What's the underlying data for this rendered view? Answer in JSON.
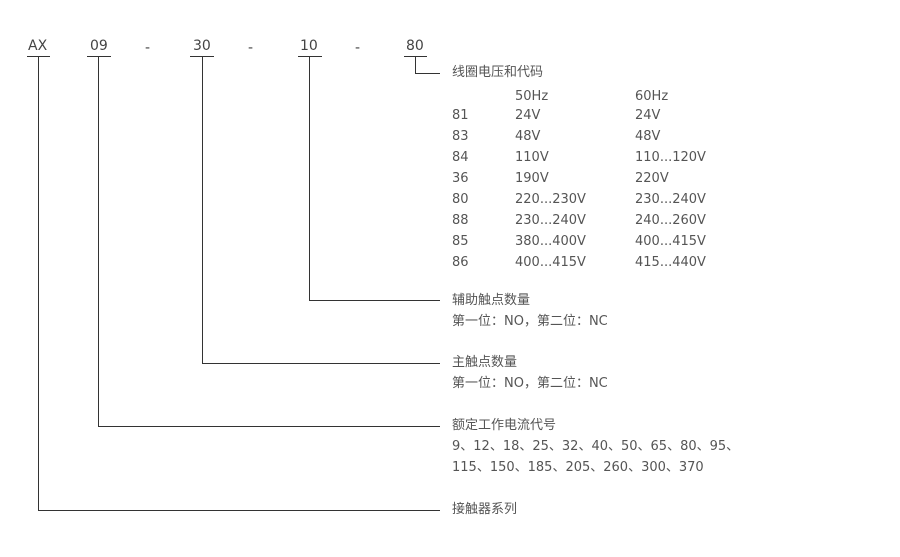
{
  "codes": {
    "series": "AX",
    "current": "09",
    "main": "30",
    "aux": "10",
    "coil": "80",
    "dash": "-"
  },
  "coil": {
    "title": "线圈电压和代码",
    "headers": [
      "50Hz",
      "60Hz"
    ],
    "rows": [
      [
        "81",
        "24V",
        "24V"
      ],
      [
        "83",
        "48V",
        "48V"
      ],
      [
        "84",
        "110V",
        "110...120V"
      ],
      [
        "36",
        "190V",
        "220V"
      ],
      [
        "80",
        "220...230V",
        "230...240V"
      ],
      [
        "88",
        "230...240V",
        "240...260V"
      ],
      [
        "85",
        "380...400V",
        "400...415V"
      ],
      [
        "86",
        "400...415V",
        "415...440V"
      ]
    ]
  },
  "aux": {
    "title": "辅助触点数量",
    "desc": "第一位：NO，第二位：NC"
  },
  "main": {
    "title": "主触点数量",
    "desc": "第一位：NO，第二位：NC"
  },
  "current": {
    "title": "额定工作电流代号",
    "line1": "9、12、18、25、32、40、50、65、80、95、",
    "line2": "115、150、185、205、260、300、370"
  },
  "series": {
    "title": "接触器系列"
  }
}
